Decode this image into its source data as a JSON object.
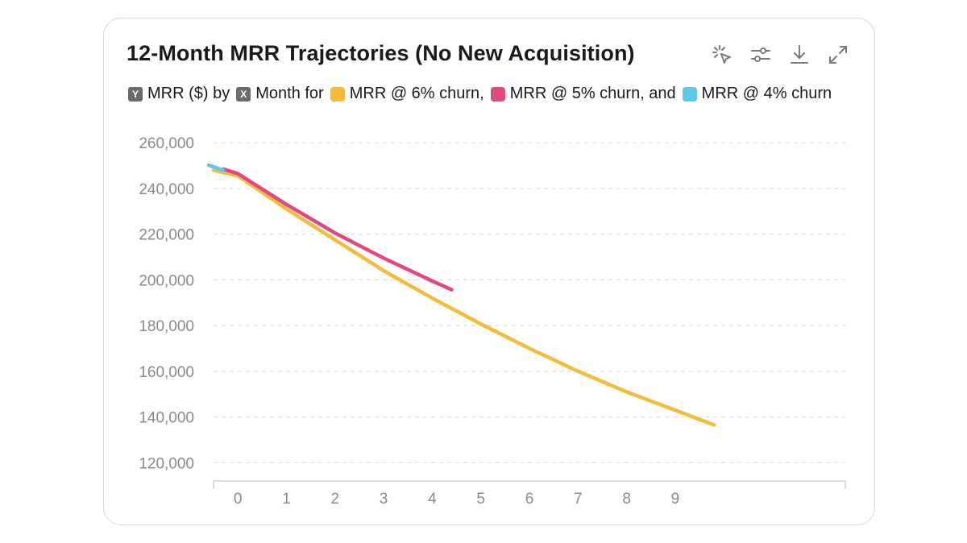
{
  "title": "12-Month MRR Trajectories (No New Acquisition)",
  "toolbar": {
    "icons": [
      "sparkle-cursor-icon",
      "sliders-icon",
      "download-icon",
      "expand-icon"
    ]
  },
  "legend": {
    "y_badge": "Y",
    "y_text": "MRR ($) by",
    "x_badge": "X",
    "x_text": "Month for",
    "items": [
      {
        "label": "MRR @ 6% churn,",
        "color": "#f4bb3c"
      },
      {
        "label": "MRR @ 5% churn, and",
        "color": "#e04a7f"
      },
      {
        "label": "MRR @ 4% churn",
        "color": "#5bc8e6"
      }
    ]
  },
  "chart_data": {
    "type": "line",
    "title": "12-Month MRR Trajectories (No New Acquisition)",
    "xlabel": "Month",
    "ylabel": "MRR ($)",
    "x_ticks": [
      "0",
      "1",
      "2",
      "3",
      "4",
      "5",
      "6",
      "7",
      "8",
      "9"
    ],
    "y_ticks": [
      "260,000",
      "240,000",
      "220,000",
      "200,000",
      "180,000",
      "160,000",
      "140,000",
      "120,000"
    ],
    "ylim": [
      112000,
      265000
    ],
    "xlim": [
      -0.5,
      12.5
    ],
    "grid": true,
    "series": [
      {
        "name": "MRR @ 6% churn",
        "color": "#f4bb3c",
        "x": [
          -0.5,
          0,
          1,
          2,
          3,
          4,
          5,
          6,
          7,
          8,
          9,
          9.8
        ],
        "y": [
          248000,
          245500,
          231000,
          217500,
          204000,
          192000,
          180700,
          170000,
          160000,
          151000,
          143000,
          136500
        ]
      },
      {
        "name": "MRR @ 5% churn",
        "color": "#e04a7f",
        "x": [
          -0.3,
          0,
          1,
          2,
          3,
          4,
          4.4
        ],
        "y": [
          248500,
          246500,
          233000,
          220500,
          209500,
          199500,
          195700
        ]
      },
      {
        "name": "MRR @ 4% churn",
        "color": "#5bc8e6",
        "x": [
          -0.6,
          -0.3
        ],
        "y": [
          250200,
          248000
        ]
      }
    ]
  }
}
